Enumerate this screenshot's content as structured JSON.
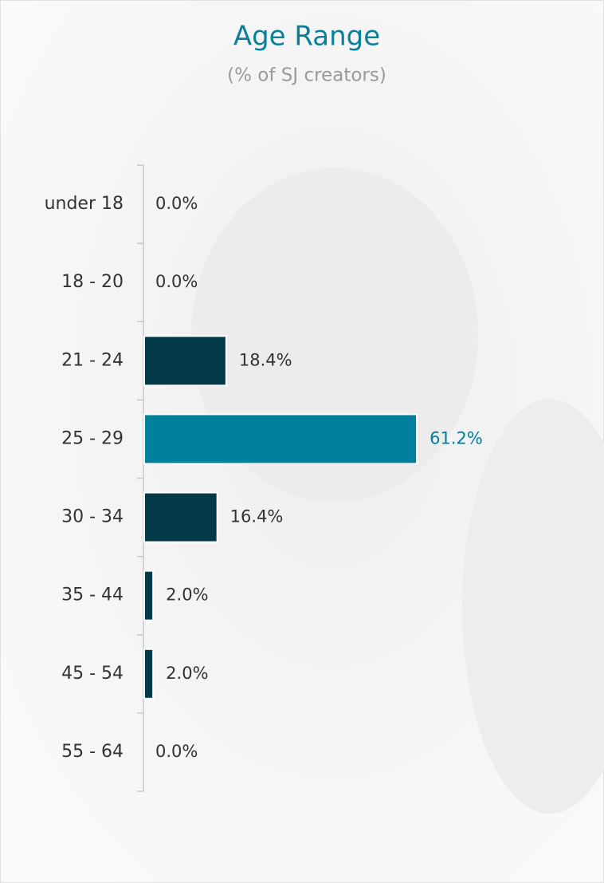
{
  "chart_data": {
    "type": "bar",
    "orientation": "horizontal",
    "title": "Age Range",
    "subtitle": "(% of SJ creators)",
    "categories": [
      "under 18",
      "18 - 20",
      "21 - 24",
      "25 - 29",
      "30 - 34",
      "35 - 44",
      "45 - 54",
      "55 - 64"
    ],
    "values": [
      0.0,
      0.0,
      18.4,
      61.2,
      16.4,
      2.0,
      2.0,
      0.0
    ],
    "value_labels": [
      "0.0%",
      "0.0%",
      "18.4%",
      "61.2%",
      "16.4%",
      "2.0%",
      "2.0%",
      "0.0%"
    ],
    "colors": [
      "#023a47",
      "#023a47",
      "#023a47",
      "#00809d",
      "#023a47",
      "#023a47",
      "#023a47",
      "#023a47"
    ]
  }
}
